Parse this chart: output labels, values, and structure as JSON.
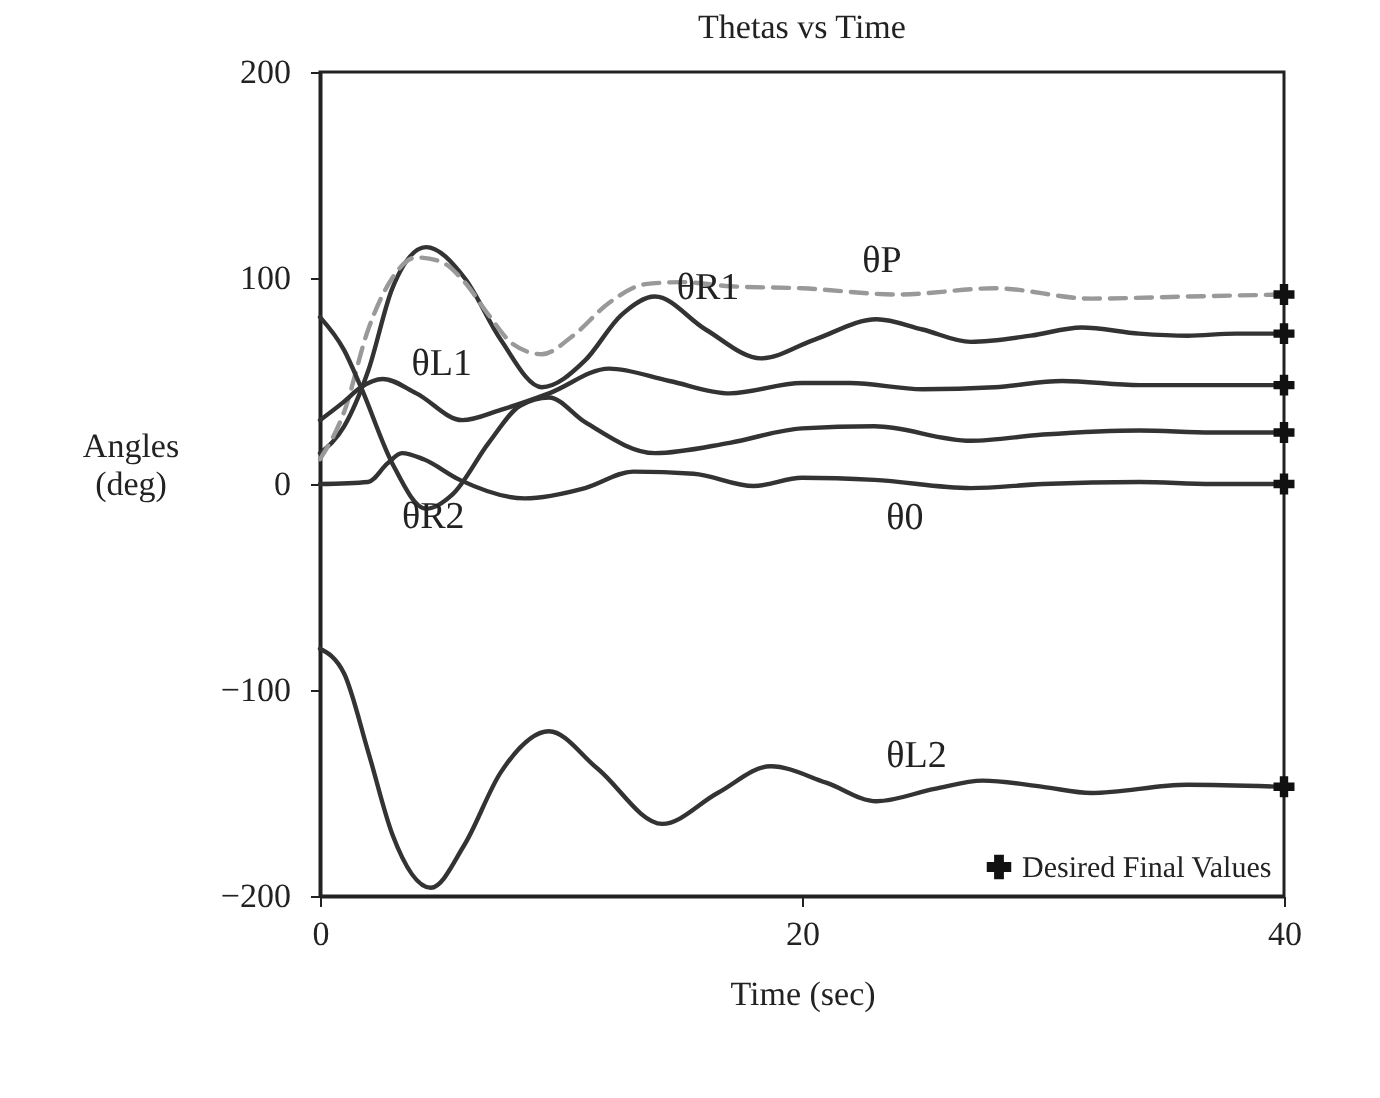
{
  "chart_data": {
    "type": "line",
    "title": "Thetas vs Time",
    "xlabel": "Time (sec)",
    "ylabel": "Angles (deg)",
    "xlim": [
      0,
      40
    ],
    "xticks": [
      0,
      20,
      40
    ],
    "ylim": [
      -200,
      200
    ],
    "yticks": [
      -200,
      -100,
      0,
      100,
      200
    ],
    "grid": false,
    "legend": "bottom right",
    "series": [
      {
        "name": "θR1",
        "color": "#333333",
        "line_style": "solid",
        "x": [
          0,
          1,
          2,
          3,
          4.4,
          6,
          7.5,
          9.2,
          11,
          12.5,
          13.9,
          16,
          18.3,
          20.5,
          23.1,
          25,
          27,
          29.5,
          31.6,
          34,
          36,
          38,
          40
        ],
        "values": [
          15,
          28,
          55,
          95,
          115,
          100,
          70,
          47,
          60,
          82,
          91,
          75,
          61,
          70,
          80,
          75,
          69,
          72,
          76,
          73,
          72,
          73,
          73
        ]
      },
      {
        "name": "θP",
        "color": "#999999",
        "line_style": "dashed",
        "x": [
          0,
          1,
          2,
          3,
          4,
          5,
          6,
          7,
          8,
          9.2,
          10.5,
          12,
          13.5,
          15,
          17,
          20,
          24,
          28,
          32,
          36,
          40
        ],
        "values": [
          12,
          35,
          75,
          100,
          110,
          108,
          98,
          82,
          68,
          63,
          72,
          88,
          97,
          98,
          96,
          95,
          92,
          95,
          90,
          91,
          92
        ]
      },
      {
        "name": "θL1",
        "color": "#333333",
        "line_style": "solid",
        "x": [
          0,
          1,
          1.7,
          2.6,
          4,
          5.9,
          7.5,
          9.5,
          12,
          14.5,
          17,
          20,
          22,
          25,
          28,
          30.8,
          34,
          37,
          40
        ],
        "values": [
          31,
          40,
          47,
          51,
          44,
          31,
          36,
          44,
          56,
          50,
          44,
          49,
          49,
          46,
          47,
          50,
          48,
          48,
          48
        ]
      },
      {
        "name": "θR2",
        "color": "#333333",
        "line_style": "solid",
        "x": [
          0,
          1,
          1.7,
          3,
          4.4,
          5.5,
          7,
          8.3,
          9.5,
          11,
          13.9,
          17,
          20,
          23,
          27,
          30,
          34,
          37,
          40
        ],
        "values": [
          81,
          65,
          47,
          10,
          -12,
          -5,
          20,
          38,
          42,
          30,
          15,
          20,
          27,
          28,
          21,
          24,
          26,
          25,
          25
        ]
      },
      {
        "name": "θ0",
        "color": "#333333",
        "line_style": "solid",
        "x": [
          0,
          2,
          2.8,
          3.4,
          4.3,
          5.8,
          8.5,
          11,
          13,
          15.5,
          18,
          20,
          23,
          27,
          30,
          34,
          37,
          40
        ],
        "values": [
          0,
          1,
          10,
          15,
          12,
          2,
          -7,
          -2,
          6,
          5,
          -1,
          3,
          2,
          -2,
          0,
          1,
          0,
          0
        ]
      },
      {
        "name": "θL2",
        "color": "#333333",
        "line_style": "solid",
        "x": [
          0,
          1,
          2,
          3,
          4.6,
          6,
          7.5,
          9.5,
          11.5,
          14.2,
          16.5,
          18.7,
          21,
          23.1,
          25.5,
          27.5,
          30,
          32,
          36,
          40
        ],
        "values": [
          -80,
          -92,
          -130,
          -170,
          -196,
          -175,
          -140,
          -120,
          -138,
          -165,
          -150,
          -137,
          -145,
          -154,
          -148,
          -144,
          -147,
          -150,
          -146,
          -147
        ]
      },
      {
        "type": "scatter",
        "name": "Desired Final Values",
        "marker": "cross",
        "color": "#111111",
        "x": [
          40,
          40,
          40,
          40,
          40,
          40
        ],
        "values": [
          92,
          73,
          48,
          25,
          0,
          -147
        ]
      }
    ]
  }
}
